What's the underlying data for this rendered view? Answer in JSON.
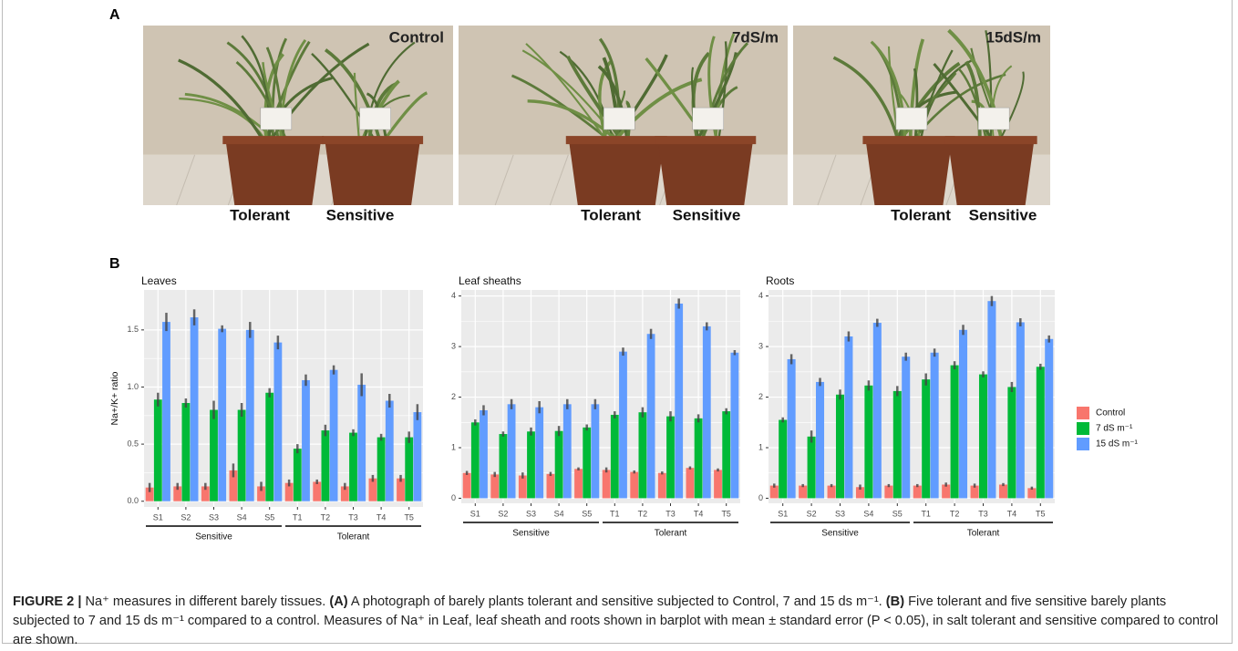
{
  "panel_a": {
    "label": "A",
    "photos": [
      {
        "condition": "Control",
        "subjects": [
          "Tolerant",
          "Sensitive"
        ]
      },
      {
        "condition": "7dS/m",
        "subjects": [
          "Tolerant",
          "Sensitive"
        ]
      },
      {
        "condition": "15dS/m",
        "subjects": [
          "Tolerant",
          "Sensitive"
        ]
      }
    ]
  },
  "panel_b": {
    "label": "B"
  },
  "chart_data": [
    {
      "type": "bar",
      "title": "Leaves",
      "y_label": "Na+/K+ ratio",
      "categories": [
        "S1",
        "S2",
        "S3",
        "S4",
        "S5",
        "T1",
        "T2",
        "T3",
        "T4",
        "T5"
      ],
      "groups": [
        "Sensitive",
        "Tolerant"
      ],
      "ylim": [
        -0.05,
        1.85
      ],
      "yticks": [
        {
          "value": 0,
          "label": "0.0"
        },
        0.5,
        {
          "value": 1,
          "label": "1.0"
        },
        1.5
      ],
      "grid": true,
      "series": [
        {
          "name": "Control",
          "color": "#f8766d",
          "values": [
            0.12,
            0.13,
            0.13,
            0.27,
            0.13,
            0.16,
            0.17,
            0.13,
            0.2,
            0.2
          ],
          "errors": [
            0.04,
            0.03,
            0.03,
            0.06,
            0.04,
            0.03,
            0.02,
            0.03,
            0.03,
            0.03
          ]
        },
        {
          "name": "7 dS m⁻¹",
          "color": "#00ba38",
          "values": [
            0.89,
            0.86,
            0.8,
            0.8,
            0.95,
            0.46,
            0.62,
            0.6,
            0.56,
            0.56
          ],
          "errors": [
            0.06,
            0.04,
            0.08,
            0.06,
            0.04,
            0.04,
            0.05,
            0.03,
            0.03,
            0.05
          ]
        },
        {
          "name": "15 dS m⁻¹",
          "color": "#619cff",
          "values": [
            1.57,
            1.61,
            1.51,
            1.5,
            1.39,
            1.06,
            1.15,
            1.02,
            0.88,
            0.78
          ],
          "errors": [
            0.08,
            0.07,
            0.03,
            0.07,
            0.06,
            0.05,
            0.04,
            0.1,
            0.06,
            0.07
          ]
        }
      ]
    },
    {
      "type": "bar",
      "title": "Leaf sheaths",
      "categories": [
        "S1",
        "S2",
        "S3",
        "S4",
        "S5",
        "T1",
        "T2",
        "T3",
        "T4",
        "T5"
      ],
      "groups": [
        "Sensitive",
        "Tolerant"
      ],
      "ylim": [
        -0.1,
        4.12
      ],
      "yticks": [
        0,
        1,
        2,
        3,
        4
      ],
      "grid": true,
      "series": [
        {
          "color": "#f8766d",
          "values": [
            0.5,
            0.47,
            0.45,
            0.48,
            0.58,
            0.56,
            0.52,
            0.5,
            0.6,
            0.56
          ],
          "errors": [
            0.04,
            0.05,
            0.06,
            0.04,
            0.03,
            0.05,
            0.03,
            0.03,
            0.03,
            0.03
          ]
        },
        {
          "color": "#00ba38",
          "values": [
            1.5,
            1.27,
            1.32,
            1.33,
            1.4,
            1.65,
            1.7,
            1.62,
            1.58,
            1.72
          ],
          "errors": [
            0.06,
            0.05,
            0.08,
            0.1,
            0.06,
            0.07,
            0.1,
            0.1,
            0.08,
            0.06
          ]
        },
        {
          "color": "#619cff",
          "values": [
            1.74,
            1.86,
            1.8,
            1.86,
            1.86,
            2.9,
            3.25,
            3.85,
            3.4,
            2.88
          ],
          "errors": [
            0.1,
            0.1,
            0.12,
            0.1,
            0.1,
            0.08,
            0.1,
            0.1,
            0.08,
            0.05
          ]
        }
      ]
    },
    {
      "type": "bar",
      "title": "Roots",
      "categories": [
        "S1",
        "S2",
        "S3",
        "S4",
        "S5",
        "T1",
        "T2",
        "T3",
        "T4",
        "T5"
      ],
      "groups": [
        "Sensitive",
        "Tolerant"
      ],
      "ylim": [
        -0.1,
        4.12
      ],
      "yticks": [
        0,
        1,
        2,
        3,
        4
      ],
      "grid": true,
      "series": [
        {
          "color": "#f8766d",
          "values": [
            0.25,
            0.25,
            0.25,
            0.22,
            0.25,
            0.25,
            0.27,
            0.25,
            0.27,
            0.2
          ],
          "errors": [
            0.04,
            0.03,
            0.03,
            0.05,
            0.03,
            0.03,
            0.04,
            0.04,
            0.03,
            0.03
          ]
        },
        {
          "color": "#00ba38",
          "values": [
            1.55,
            1.22,
            2.05,
            2.23,
            2.12,
            2.35,
            2.63,
            2.45,
            2.2,
            2.6
          ],
          "errors": [
            0.05,
            0.12,
            0.1,
            0.1,
            0.1,
            0.12,
            0.08,
            0.06,
            0.1,
            0.06
          ]
        },
        {
          "color": "#619cff",
          "values": [
            2.75,
            2.3,
            3.2,
            3.47,
            2.8,
            2.88,
            3.33,
            3.9,
            3.48,
            3.15
          ],
          "errors": [
            0.1,
            0.08,
            0.1,
            0.08,
            0.08,
            0.08,
            0.1,
            0.1,
            0.08,
            0.07
          ]
        }
      ]
    }
  ],
  "caption": {
    "figure_label": "FIGURE 2 |",
    "title": " Na⁺ measures in different barely tissues. ",
    "a_label": "(A)",
    "a_text": " A photograph of barely plants tolerant and sensitive subjected to Control, 7 and 15 ds m⁻¹. ",
    "b_label": "(B)",
    "b_text": " Five tolerant and five sensitive barely plants subjected to 7 and 15 ds m⁻¹ compared to a control. Measures of Na⁺ in Leaf, leaf sheath and roots shown in barplot with mean ± standard error (P < 0.05), in salt tolerant and sensitive compared to control are shown."
  }
}
